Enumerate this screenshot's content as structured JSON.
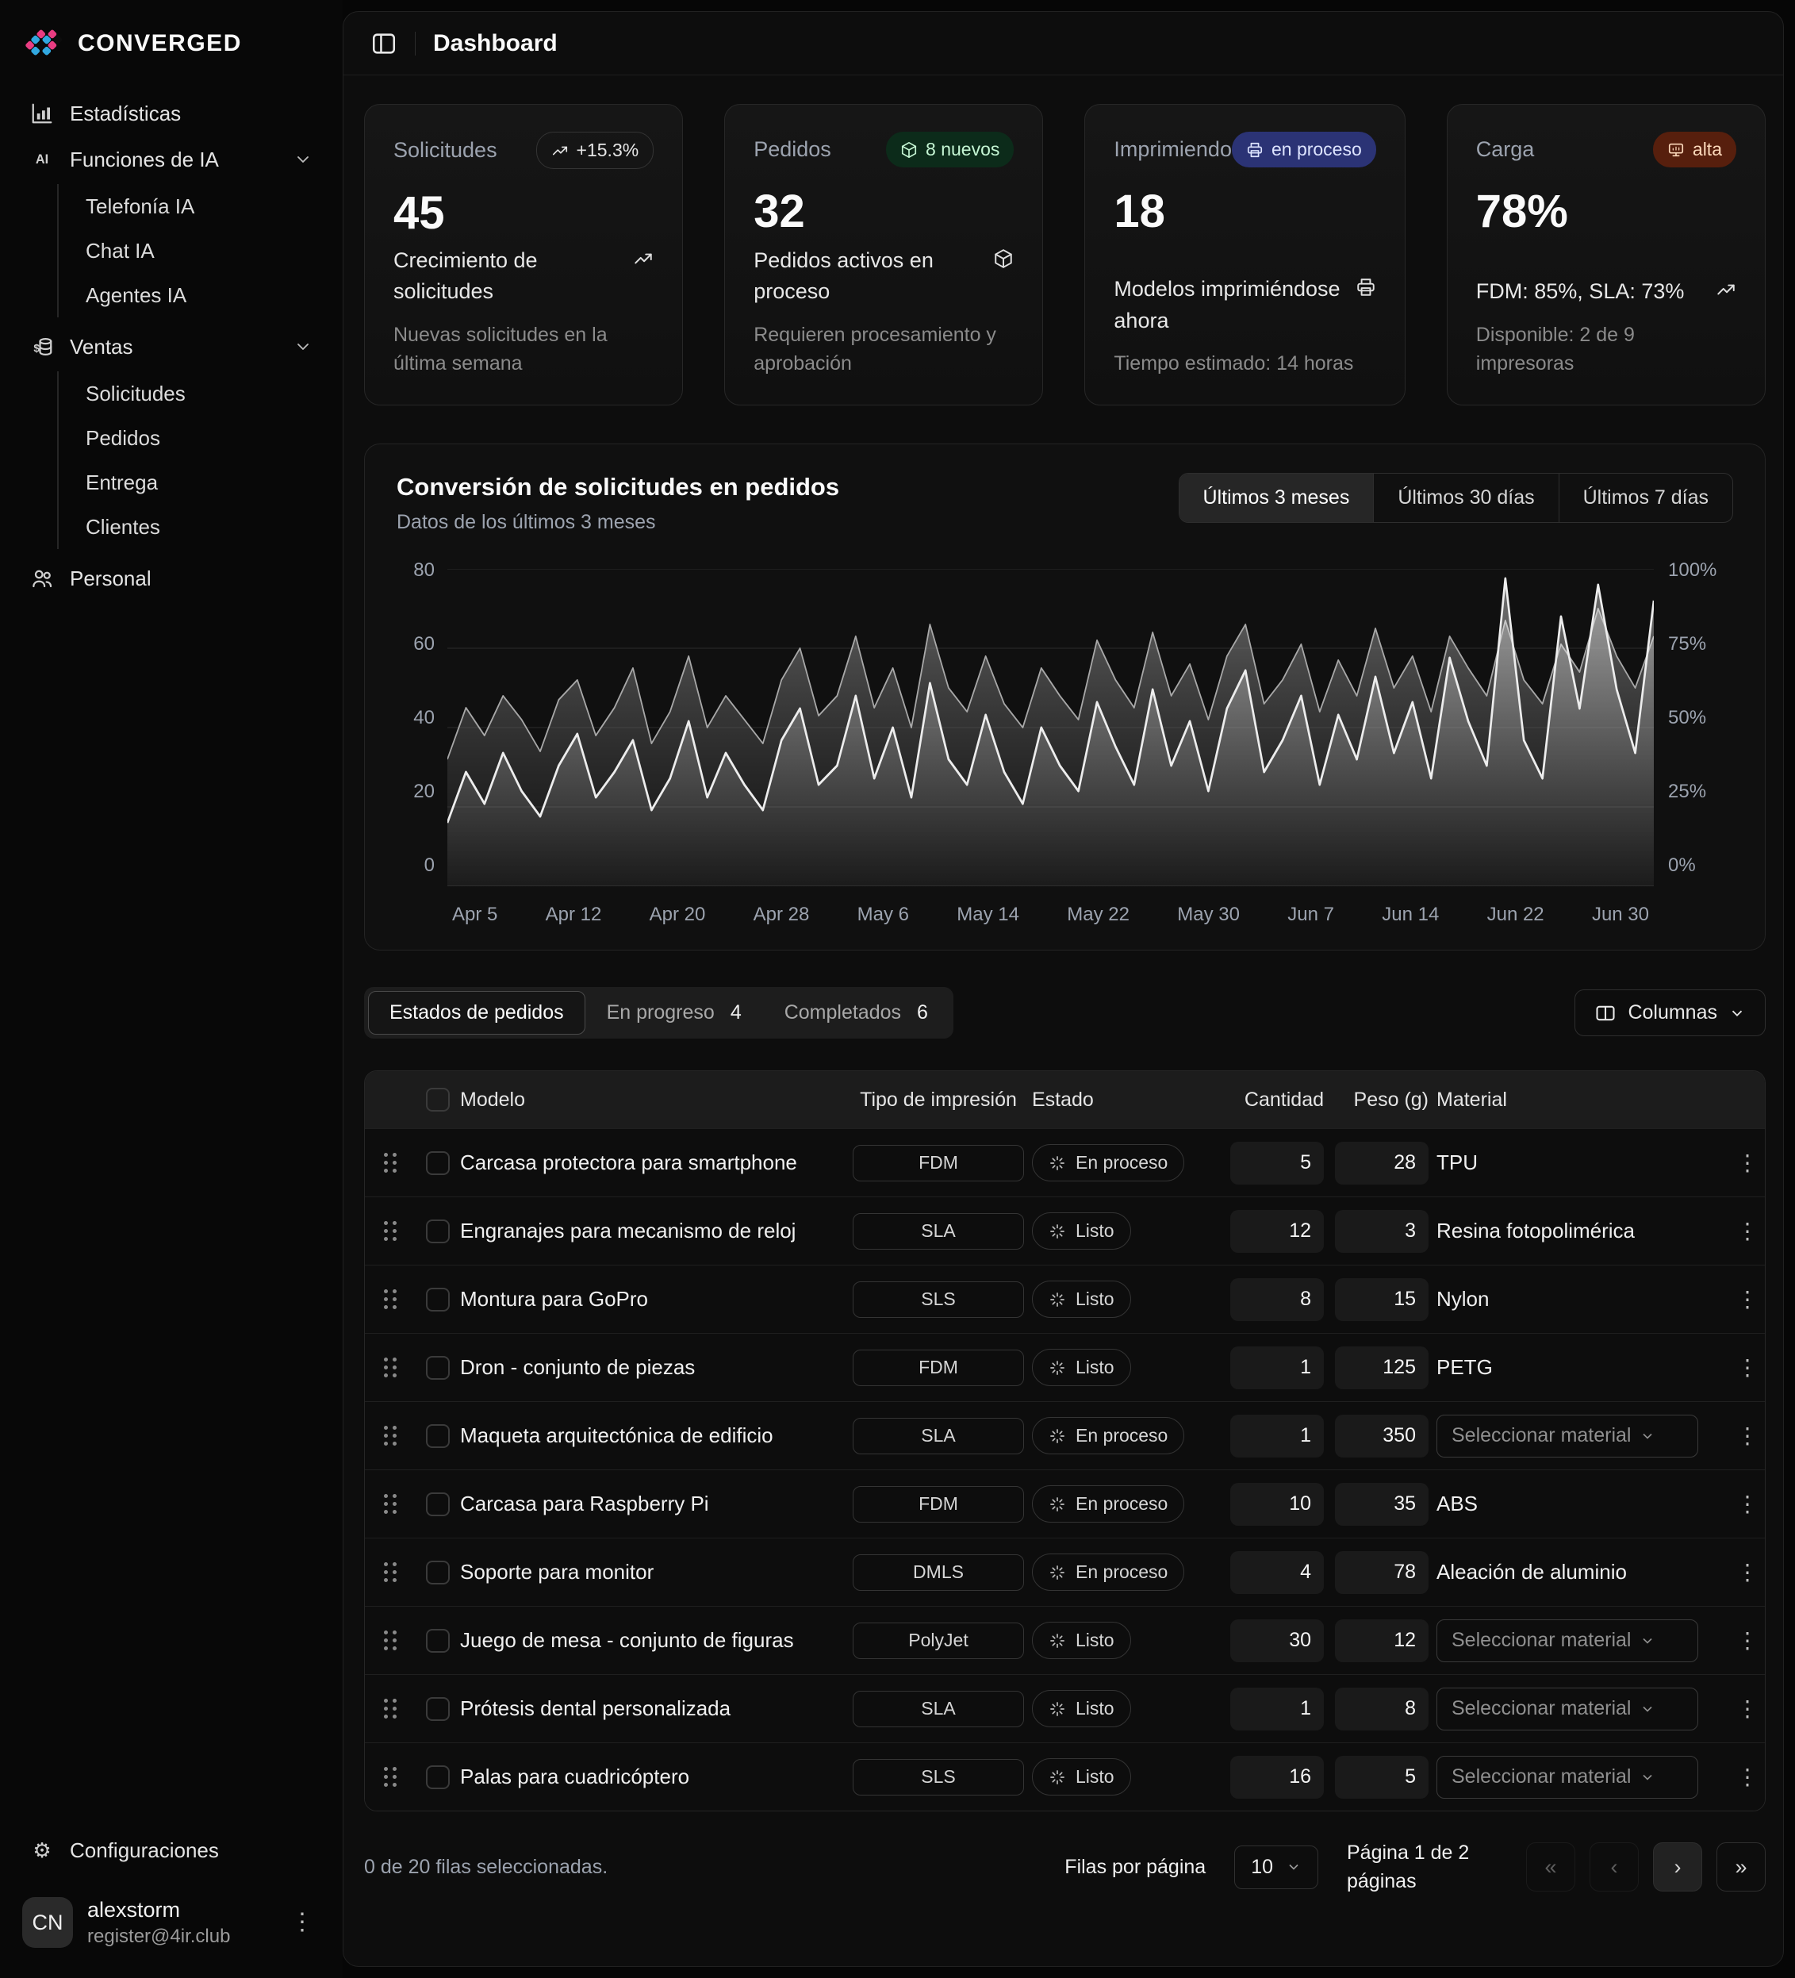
{
  "app": {
    "name": "CONVERGED"
  },
  "header": {
    "title": "Dashboard"
  },
  "sidebar": {
    "items": [
      {
        "label": "Estadísticas",
        "icon": "bar-chart"
      },
      {
        "label": "Funciones de IA",
        "icon": "ai",
        "expanded": true,
        "children": [
          "Telefonía IA",
          "Chat IA",
          "Agentes IA"
        ]
      },
      {
        "label": "Ventas",
        "icon": "sales",
        "expanded": true,
        "children": [
          "Solicitudes",
          "Pedidos",
          "Entrega",
          "Clientes"
        ]
      },
      {
        "label": "Personal",
        "icon": "people"
      }
    ],
    "settings_label": "Configuraciones",
    "user": {
      "initials": "CN",
      "name": "alexstorm",
      "email": "register@4ir.club"
    }
  },
  "stat_cards": [
    {
      "label": "Solicitudes",
      "value": "45",
      "badge": {
        "text": "+15.3%",
        "style": "outline",
        "icon": "trending-up"
      },
      "title": "Crecimiento de solicitudes",
      "title_icon": "trending-up",
      "description": "Nuevas solicitudes en la última semana"
    },
    {
      "label": "Pedidos",
      "value": "32",
      "badge": {
        "text": "8 nuevos",
        "style": "green",
        "icon": "package"
      },
      "title": "Pedidos activos en proceso",
      "title_icon": "package",
      "description": "Requieren procesamiento y aprobación"
    },
    {
      "label": "Imprimiendo",
      "value": "18",
      "badge": {
        "text": "en proceso",
        "style": "blue",
        "icon": "printer"
      },
      "title": "Modelos imprimiéndose ahora",
      "title_icon": "printer",
      "description": "Tiempo estimado: 14 horas"
    },
    {
      "label": "Carga",
      "value": "78%",
      "badge": {
        "text": "alta",
        "style": "orange",
        "icon": "monitor"
      },
      "title": "FDM: 85%, SLA: 73%",
      "title_icon": "trending-up",
      "description": "Disponible: 2 de 9 impresoras"
    }
  ],
  "chart": {
    "title": "Conversión de solicitudes en pedidos",
    "subtitle": "Datos de los últimos 3 meses",
    "ranges": [
      "Últimos 3 meses",
      "Últimos 30 días",
      "Últimos 7 días"
    ],
    "active_range": 0
  },
  "chart_data": {
    "type": "area",
    "title": "Conversión de solicitudes en pedidos",
    "x_ticks": [
      "Apr 5",
      "Apr 12",
      "Apr 20",
      "Apr 28",
      "May 6",
      "May 14",
      "May 22",
      "May 30",
      "Jun 7",
      "Jun 14",
      "Jun 22",
      "Jun 30"
    ],
    "left_axis": {
      "ticks": [
        0,
        20,
        40,
        60,
        80
      ],
      "range": [
        0,
        80
      ]
    },
    "right_axis": {
      "ticks": [
        "0%",
        "25%",
        "50%",
        "75%",
        "100%"
      ],
      "range": [
        0,
        100
      ]
    },
    "grid": true,
    "legend": "none",
    "series": [
      {
        "name": "Solicitudes",
        "axis": "left",
        "color": "#a8a8a8",
        "max": 80,
        "values": [
          32,
          45,
          38,
          48,
          42,
          34,
          47,
          52,
          38,
          45,
          55,
          36,
          44,
          58,
          40,
          48,
          42,
          36,
          52,
          60,
          43,
          48,
          63,
          45,
          55,
          40,
          66,
          50,
          44,
          58,
          46,
          40,
          55,
          48,
          42,
          62,
          52,
          45,
          64,
          48,
          56,
          42,
          58,
          66,
          46,
          52,
          61,
          44,
          57,
          48,
          65,
          50,
          58,
          44,
          63,
          55,
          48,
          67,
          52,
          46,
          61,
          54,
          70,
          58,
          50,
          63
        ]
      },
      {
        "name": "Conversión",
        "axis": "right",
        "color": "#ededed",
        "max": 100,
        "values": [
          20,
          36,
          26,
          42,
          30,
          22,
          38,
          48,
          28,
          36,
          46,
          24,
          34,
          52,
          28,
          42,
          32,
          24,
          46,
          56,
          32,
          38,
          60,
          34,
          50,
          28,
          64,
          40,
          32,
          54,
          36,
          26,
          50,
          38,
          30,
          58,
          44,
          32,
          62,
          38,
          52,
          30,
          56,
          68,
          36,
          46,
          60,
          32,
          54,
          40,
          66,
          42,
          58,
          34,
          72,
          52,
          38,
          97,
          46,
          34,
          85,
          56,
          95,
          62,
          42,
          90
        ]
      }
    ]
  },
  "table_section": {
    "tabs": [
      {
        "label": "Estados de pedidos",
        "active": true
      },
      {
        "label": "En progreso",
        "count": "4"
      },
      {
        "label": "Completados",
        "count": "6"
      }
    ],
    "columns_button_label": "Columnas",
    "columns": [
      "Modelo",
      "Tipo de impresión",
      "Estado",
      "Cantidad",
      "Peso (g)",
      "Material"
    ],
    "select_placeholder": "Seleccionar material",
    "rows": [
      {
        "model": "Carcasa protectora para smartphone",
        "type": "FDM",
        "status": "En proceso",
        "qty": "5",
        "weight": "28",
        "material": {
          "kind": "text",
          "value": "TPU"
        }
      },
      {
        "model": "Engranajes para mecanismo de reloj",
        "type": "SLA",
        "status": "Listo",
        "qty": "12",
        "weight": "3",
        "material": {
          "kind": "text",
          "value": "Resina fotopolimérica"
        }
      },
      {
        "model": "Montura para GoPro",
        "type": "SLS",
        "status": "Listo",
        "qty": "8",
        "weight": "15",
        "material": {
          "kind": "text",
          "value": "Nylon"
        }
      },
      {
        "model": "Dron - conjunto de piezas",
        "type": "FDM",
        "status": "Listo",
        "qty": "1",
        "weight": "125",
        "material": {
          "kind": "text",
          "value": "PETG"
        }
      },
      {
        "model": "Maqueta arquitectónica de edificio",
        "type": "SLA",
        "status": "En proceso",
        "qty": "1",
        "weight": "350",
        "material": {
          "kind": "select",
          "value": "Seleccionar material"
        }
      },
      {
        "model": "Carcasa para Raspberry Pi",
        "type": "FDM",
        "status": "En proceso",
        "qty": "10",
        "weight": "35",
        "material": {
          "kind": "text",
          "value": "ABS"
        }
      },
      {
        "model": "Soporte para monitor",
        "type": "DMLS",
        "status": "En proceso",
        "qty": "4",
        "weight": "78",
        "material": {
          "kind": "text",
          "value": "Aleación de aluminio"
        }
      },
      {
        "model": "Juego de mesa - conjunto de figuras",
        "type": "PolyJet",
        "status": "Listo",
        "qty": "30",
        "weight": "12",
        "material": {
          "kind": "select",
          "value": "Seleccionar material"
        }
      },
      {
        "model": "Prótesis dental personalizada",
        "type": "SLA",
        "status": "Listo",
        "qty": "1",
        "weight": "8",
        "material": {
          "kind": "select",
          "value": "Seleccionar material"
        }
      },
      {
        "model": "Palas para cuadricóptero",
        "type": "SLS",
        "status": "Listo",
        "qty": "16",
        "weight": "5",
        "material": {
          "kind": "select",
          "value": "Seleccionar material"
        }
      }
    ],
    "footer": {
      "selection": "0 de 20 filas seleccionadas.",
      "rows_per_page_label": "Filas por página",
      "rows_per_page": "10",
      "page_info": "Página 1 de 2 páginas",
      "pagination": {
        "first": "«",
        "prev": "‹",
        "next": "›",
        "last": "»"
      }
    }
  }
}
